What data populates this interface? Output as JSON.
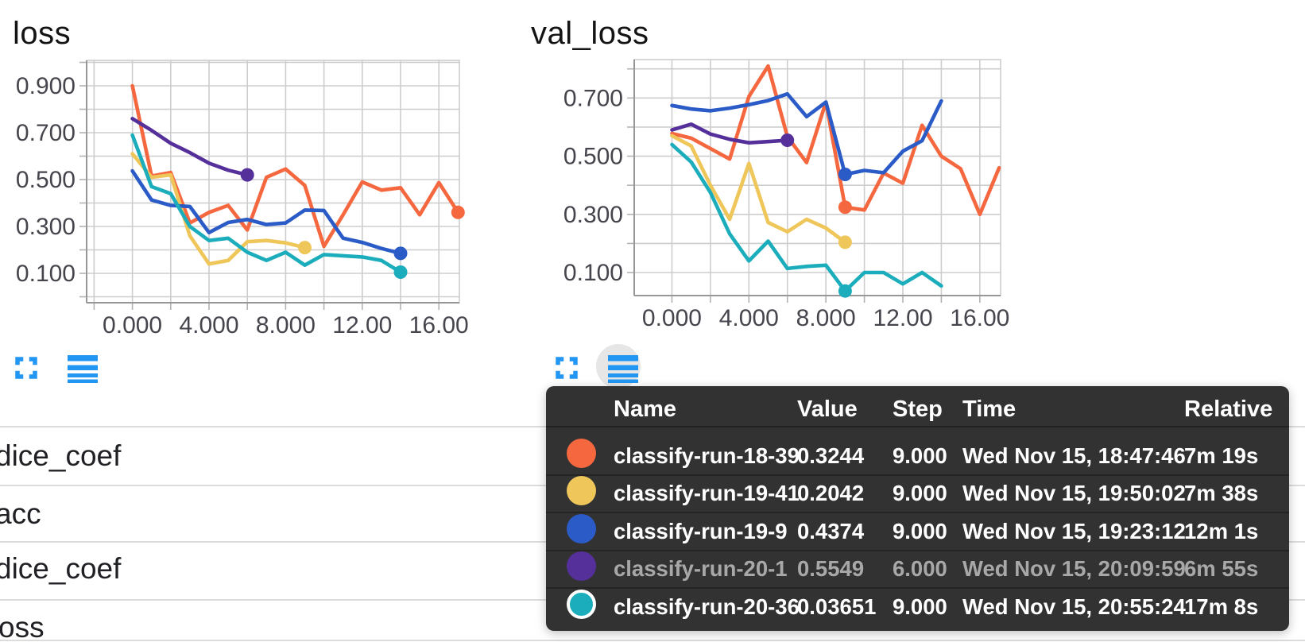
{
  "chart_data": [
    {
      "type": "line",
      "title": "loss",
      "xlabel": "",
      "ylabel": "",
      "grid": true,
      "xlim": [
        -2.39,
        17.07
      ],
      "ylim": [
        -0.0254,
        1.0085
      ],
      "x_ticks": [
        {
          "v": 0,
          "label": "0.000"
        },
        {
          "v": 4,
          "label": "4.000"
        },
        {
          "v": 8,
          "label": "8.000"
        },
        {
          "v": 12,
          "label": "12.00"
        },
        {
          "v": 16,
          "label": "16.00"
        }
      ],
      "y_ticks": [
        {
          "v": 0.9,
          "label": "0.900"
        },
        {
          "v": 0.7,
          "label": "0.700"
        },
        {
          "v": 0.5,
          "label": "0.500"
        },
        {
          "v": 0.3,
          "label": "0.300"
        },
        {
          "v": 0.1,
          "label": "0.100"
        }
      ],
      "series": [
        {
          "name": "classify-run-18-39",
          "color": "#F5683F",
          "dot_at": 17,
          "values": [
            0.9,
            0.515,
            0.53,
            0.315,
            0.36,
            0.39,
            0.285,
            0.51,
            0.545,
            0.475,
            0.215,
            0.35,
            0.49,
            0.455,
            0.465,
            0.35,
            0.487,
            0.36
          ]
        },
        {
          "name": "classify-run-19-41",
          "color": "#EFC65A",
          "dot_at": 9,
          "values": [
            0.61,
            0.51,
            0.52,
            0.26,
            0.14,
            0.155,
            0.235,
            0.24,
            0.23,
            0.21
          ]
        },
        {
          "name": "classify-run-19-9",
          "color": "#2B5BC7",
          "dot_at": 14,
          "values": [
            0.537,
            0.413,
            0.39,
            0.385,
            0.274,
            0.317,
            0.33,
            0.308,
            0.315,
            0.37,
            0.368,
            0.25,
            0.232,
            0.206,
            0.185
          ]
        },
        {
          "name": "classify-run-20-1",
          "color": "#55309B",
          "dot_at": 6,
          "values": [
            0.76,
            0.71,
            0.655,
            0.615,
            0.57,
            0.54,
            0.52
          ]
        },
        {
          "name": "classify-run-20-36",
          "color": "#1CADBC",
          "dot_at": 14,
          "values": [
            0.69,
            0.47,
            0.44,
            0.3,
            0.24,
            0.25,
            0.19,
            0.155,
            0.19,
            0.135,
            0.18,
            0.175,
            0.17,
            0.155,
            0.105
          ]
        }
      ]
    },
    {
      "type": "line",
      "title": "val_loss",
      "xlabel": "",
      "ylabel": "",
      "grid": true,
      "xlim": [
        -1.96,
        17.08
      ],
      "ylim": [
        0.0208,
        0.832
      ],
      "x_ticks": [
        {
          "v": 0,
          "label": "0.000"
        },
        {
          "v": 4,
          "label": "4.000"
        },
        {
          "v": 8,
          "label": "8.000"
        },
        {
          "v": 12,
          "label": "12.00"
        },
        {
          "v": 16,
          "label": "16.00"
        }
      ],
      "y_ticks": [
        {
          "v": 0.7,
          "label": "0.700"
        },
        {
          "v": 0.5,
          "label": "0.500"
        },
        {
          "v": 0.3,
          "label": "0.300"
        },
        {
          "v": 0.1,
          "label": "0.100"
        }
      ],
      "series": [
        {
          "name": "classify-run-18-39",
          "color": "#F5683F",
          "dot_at": 9,
          "values": [
            0.578,
            0.562,
            0.526,
            0.49,
            0.705,
            0.81,
            0.567,
            0.478,
            0.686,
            0.3244,
            0.315,
            0.442,
            0.407,
            0.606,
            0.5,
            0.457,
            0.3,
            0.46
          ]
        },
        {
          "name": "classify-run-19-41",
          "color": "#EFC65A",
          "dot_at": 9,
          "values": [
            0.57,
            0.535,
            0.4,
            0.283,
            0.475,
            0.272,
            0.24,
            0.283,
            0.253,
            0.2042
          ]
        },
        {
          "name": "classify-run-19-9",
          "color": "#2B5BC7",
          "dot_at": 9,
          "values": [
            0.674,
            0.662,
            0.656,
            0.665,
            0.677,
            0.691,
            0.714,
            0.636,
            0.686,
            0.4374,
            0.451,
            0.443,
            0.517,
            0.553,
            0.69
          ]
        },
        {
          "name": "classify-run-20-1",
          "color": "#55309B",
          "dot_at": 6,
          "values": [
            0.59,
            0.61,
            0.576,
            0.558,
            0.546,
            0.55,
            0.5549
          ]
        },
        {
          "name": "classify-run-20-36",
          "color": "#1CADBC",
          "dot_at": 9,
          "values": [
            0.54,
            0.48,
            0.375,
            0.233,
            0.14,
            0.208,
            0.114,
            0.121,
            0.125,
            0.03651,
            0.1,
            0.1,
            0.061,
            0.1,
            0.054
          ]
        }
      ]
    }
  ],
  "tooltip": {
    "headers": {
      "name": "Name",
      "value": "Value",
      "step": "Step",
      "time": "Time",
      "relative": "Relative"
    },
    "rows": [
      {
        "name": "classify-run-18-39",
        "color": "#F5683F",
        "value": "0.3244",
        "step": "9.000",
        "time": "Wed Nov 15, 18:47:46",
        "relative": "7m 19s",
        "dimmed": false,
        "ring": false
      },
      {
        "name": "classify-run-19-41",
        "color": "#EFC65A",
        "value": "0.2042",
        "step": "9.000",
        "time": "Wed Nov 15, 19:50:02",
        "relative": "7m 38s",
        "dimmed": false,
        "ring": false
      },
      {
        "name": "classify-run-19-9",
        "color": "#2B5BC7",
        "value": "0.4374",
        "step": "9.000",
        "time": "Wed Nov 15, 19:23:12",
        "relative": "12m 1s",
        "dimmed": false,
        "ring": false
      },
      {
        "name": "classify-run-20-1",
        "color": "#55309B",
        "value": "0.5549",
        "step": "6.000",
        "time": "Wed Nov 15, 20:09:59",
        "relative": "6m 55s",
        "dimmed": true,
        "ring": false
      },
      {
        "name": "classify-run-20-36",
        "color": "#1CADBC",
        "value": "0.03651",
        "step": "9.000",
        "time": "Wed Nov 15, 20:55:24",
        "relative": "17m 8s",
        "dimmed": false,
        "ring": true
      }
    ]
  },
  "metric_list": [
    "dice_coef",
    "acc",
    "dice_coef",
    "oss"
  ],
  "colors": {
    "icon_blue": "#2196F3",
    "tooltip_bg": "#323232",
    "gridline": "#cdcdcd",
    "axis_text": "#45454d"
  }
}
